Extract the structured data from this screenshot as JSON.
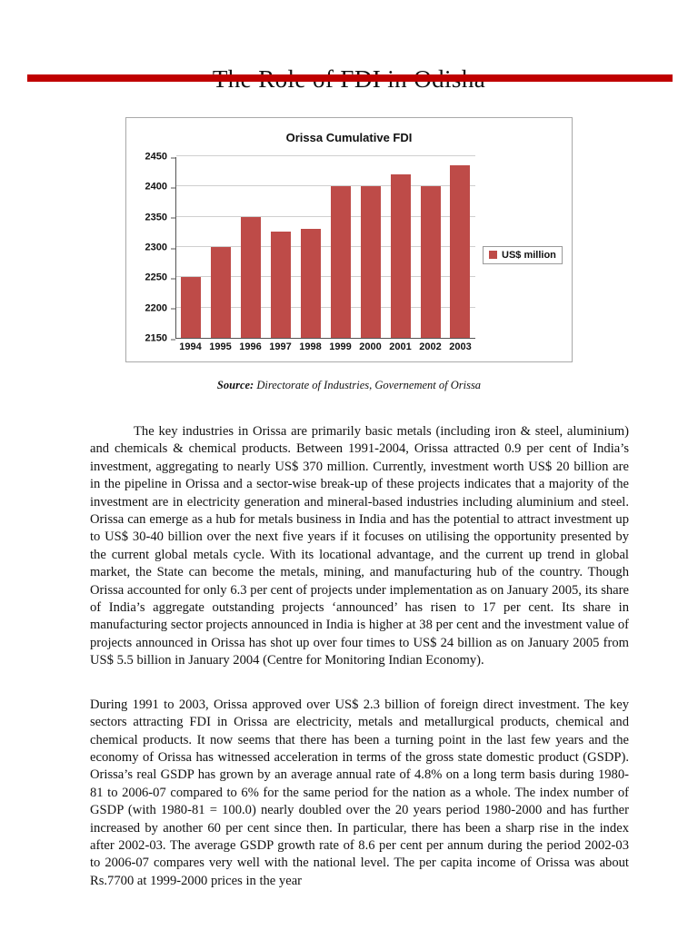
{
  "page": {
    "title": "The Role of FDI in Odisha"
  },
  "source": {
    "label": "Source:",
    "text": "Directorate of Industries, Governement of Orissa"
  },
  "paragraphs": [
    "The key industries in Orissa are primarily basic metals (including iron & steel, aluminium) and chemicals & chemical products. Between 1991-2004, Orissa attracted 0.9 per cent of India’s investment, aggregating to nearly US$ 370 million. Currently, investment worth US$ 20 billion are in the pipeline in Orissa and a sector-wise break-up of these projects indicates that a majority of the investment are in electricity generation and mineral-based industries including aluminium and steel. Orissa can emerge as a hub for metals business in India and has the potential to attract investment up to US$ 30-40 billion over the next five years if it focuses on utilising the opportunity presented by the current global metals cycle. With its locational advantage, and the current up trend in global market, the State can become the metals, mining, and manufacturing hub of the country. Though Orissa accounted for only 6.3 per cent of projects under implementation as on January 2005, its share of India’s aggregate outstanding projects ‘announced’ has risen to 17 per cent. Its share in manufacturing sector projects announced in India is higher at 38 per cent and the investment value of projects announced in Orissa has shot up over four times to US$ 24 billion as on January 2005 from US$ 5.5 billion in January 2004 (Centre for Monitoring Indian Economy).",
    "During 1991 to 2003, Orissa approved over US$ 2.3 billion of foreign direct investment. The key sectors attracting FDI in Orissa are electricity, metals and metallurgical products, chemical and chemical products. It now seems that there has been a turning point in the last few years and the economy of Orissa has witnessed acceleration in terms of the gross state domestic product (GSDP). Orissa’s real GSDP has grown by an average annual rate of 4.8% on a long term basis during 1980-81 to 2006-07 compared to 6% for the same period for the nation as a whole. The index number of GSDP (with 1980-81 = 100.0) nearly doubled over the 20 years period 1980-2000 and has further increased by another 60 per cent since then. In particular, there has been a sharp rise in the index after 2002-03. The average GSDP growth rate of 8.6 per cent per annum during the period 2002-03 to 2006-07 compares very well with the national level. The per capita income of Orissa was about Rs.7700 at 1999-2000 prices in the year"
  ],
  "chart_data": {
    "type": "bar",
    "title": "Orissa Cumulative FDI",
    "categories": [
      "1994",
      "1995",
      "1996",
      "1997",
      "1998",
      "1999",
      "2000",
      "2001",
      "2002",
      "2003"
    ],
    "values": [
      2250,
      2300,
      2350,
      2325,
      2330,
      2400,
      2400,
      2420,
      2400,
      2435
    ],
    "legend": "US$ million",
    "ylim": [
      2150,
      2450
    ],
    "ytick_step": 50,
    "bar_color": "#be4b48",
    "grid": true,
    "legend_position": "right"
  },
  "colors": {
    "rule_red": "#c00000",
    "bar_red": "#be4b48"
  }
}
